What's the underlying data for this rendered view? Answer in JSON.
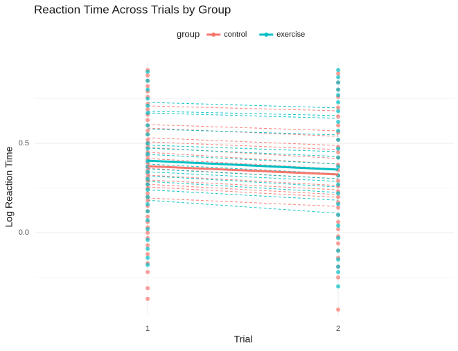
{
  "chart_data": {
    "type": "line",
    "title": "Reaction Time Across Trials by Group",
    "x_label": "Trial",
    "y_label": "Log Reaction Time",
    "legend_title": "group",
    "legend_position": "top",
    "x": [
      1,
      2
    ],
    "xlim": [
      0.407,
      2.607
    ],
    "xticks": [
      1,
      2
    ],
    "ylim": [
      -0.46,
      0.953
    ],
    "yticks": [
      {
        "value": 0,
        "label": "0.0"
      },
      0.5
    ],
    "minor_yticks": [
      -0.25,
      0.25,
      0.75
    ],
    "grid": true,
    "series": [
      {
        "name": "control",
        "color": "#F8766D",
        "values": [
          0.372,
          0.326
        ],
        "subjects": [
          [
            0.709,
            0.682
          ],
          [
            0.605,
            0.57
          ],
          [
            0.585,
            0.539
          ],
          [
            0.531,
            0.488
          ],
          [
            0.508,
            0.465
          ],
          [
            0.477,
            0.415
          ],
          [
            0.45,
            0.384
          ],
          [
            0.415,
            0.357
          ],
          [
            0.36,
            0.302
          ],
          [
            0.322,
            0.264
          ],
          [
            0.295,
            0.24
          ],
          [
            0.271,
            0.213
          ],
          [
            0.256,
            0.198
          ],
          [
            0.194,
            0.147
          ]
        ],
        "points": [
          [
            0.91,
            0.88,
            0.85,
            0.82,
            0.79,
            0.76,
            0.72,
            0.69,
            0.66,
            0.63,
            0.6,
            0.57,
            0.55,
            0.52,
            0.5,
            0.48,
            0.45,
            0.43,
            0.41,
            0.39,
            0.37,
            0.35,
            0.33,
            0.31,
            0.29,
            0.27,
            0.25,
            0.22,
            0.2,
            0.18,
            0.15,
            0.12,
            0.09,
            0.06,
            0.03,
            0.0,
            -0.03,
            -0.07,
            -0.12,
            -0.17,
            -0.22,
            -0.31,
            -0.37
          ],
          [
            0.89,
            0.84,
            0.8,
            0.76,
            0.7,
            0.65,
            0.6,
            0.56,
            0.52,
            0.48,
            0.45,
            0.42,
            0.38,
            0.35,
            0.32,
            0.29,
            0.26,
            0.23,
            0.2,
            0.17,
            0.14,
            0.1,
            0.06,
            0.02,
            -0.02,
            -0.06,
            -0.1,
            -0.14,
            -0.19,
            -0.25,
            -0.43
          ]
        ]
      },
      {
        "name": "exercise",
        "color": "#00BFC4",
        "values": [
          0.403,
          0.353
        ],
        "subjects": [
          [
            0.729,
            0.698
          ],
          [
            0.68,
            0.655
          ],
          [
            0.67,
            0.64
          ],
          [
            0.58,
            0.547
          ],
          [
            0.49,
            0.453
          ],
          [
            0.473,
            0.426
          ],
          [
            0.438,
            0.384
          ],
          [
            0.384,
            0.33
          ],
          [
            0.357,
            0.302
          ],
          [
            0.341,
            0.287
          ],
          [
            0.318,
            0.256
          ],
          [
            0.287,
            0.225
          ],
          [
            0.24,
            0.182
          ],
          [
            0.182,
            0.109
          ]
        ],
        "points": [
          [
            0.9,
            0.85,
            0.8,
            0.75,
            0.71,
            0.67,
            0.6,
            0.55,
            0.5,
            0.47,
            0.44,
            0.4,
            0.37,
            0.34,
            0.3,
            0.27,
            0.24,
            0.2,
            0.16,
            0.12,
            0.07,
            0.02,
            -0.04,
            -0.09,
            -0.14,
            -0.18
          ],
          [
            0.91,
            0.87,
            0.84,
            0.8,
            0.77,
            0.73,
            0.68,
            0.62,
            0.57,
            0.52,
            0.47,
            0.42,
            0.37,
            0.32,
            0.27,
            0.22,
            0.16,
            0.1,
            0.04,
            -0.03,
            -0.1,
            -0.15,
            -0.19,
            -0.22,
            -0.3
          ]
        ]
      }
    ]
  }
}
